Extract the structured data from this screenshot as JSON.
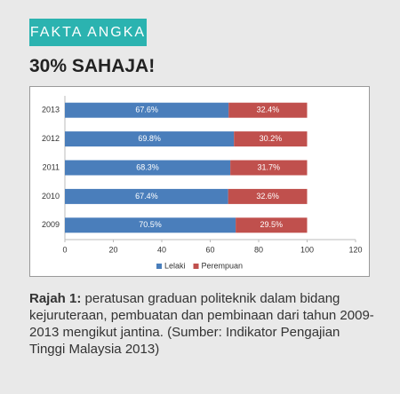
{
  "header": "FAKTA ANGKA",
  "headline": "30% SAHAJA!",
  "chart_data": {
    "type": "stacked-bar-horizontal",
    "categories": [
      "2013",
      "2012",
      "2011",
      "2010",
      "2009"
    ],
    "series": [
      {
        "name": "Lelaki",
        "color": "#4a7ebb",
        "values": [
          67.6,
          69.8,
          68.3,
          67.4,
          70.5
        ],
        "value_labels": [
          "67.6%",
          "69.8%",
          "68.3%",
          "67.4%",
          "70.5%"
        ]
      },
      {
        "name": "Perempuan",
        "color": "#c0504d",
        "values": [
          32.4,
          30.2,
          31.7,
          32.6,
          29.5
        ],
        "value_labels": [
          "32.4%",
          "30.2%",
          "31.7%",
          "32.6%",
          "29.5%"
        ]
      }
    ],
    "xlim": [
      0,
      120
    ],
    "xticks": [
      0,
      20,
      40,
      60,
      80,
      100,
      120
    ],
    "grid": false,
    "legend": "bottom"
  },
  "caption": {
    "label": "Rajah 1:",
    "text": "peratusan graduan politeknik dalam bidang kejuruteraan, pembuatan dan pembinaan dari tahun 2009-2013 mengikut jantina. (Sumber: Indikator Pengajian Tinggi Malaysia 2013)"
  }
}
